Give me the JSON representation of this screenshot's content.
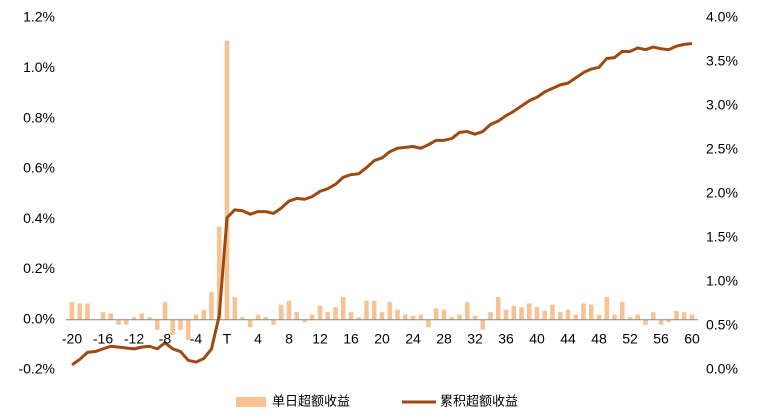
{
  "chart_data": {
    "type": "bar",
    "categories": [
      "-20",
      null,
      null,
      null,
      "-16",
      null,
      null,
      null,
      "-12",
      null,
      null,
      null,
      "-8",
      null,
      null,
      null,
      "-4",
      null,
      null,
      null,
      "T",
      null,
      null,
      null,
      "4",
      null,
      null,
      null,
      "8",
      null,
      null,
      null,
      "12",
      null,
      null,
      null,
      "16",
      null,
      null,
      null,
      "20",
      null,
      null,
      null,
      "24",
      null,
      null,
      null,
      "28",
      null,
      null,
      null,
      "32",
      null,
      null,
      null,
      "36",
      null,
      null,
      null,
      "40",
      null,
      null,
      null,
      "44",
      null,
      null,
      null,
      "48",
      null,
      null,
      null,
      "52",
      null,
      null,
      null,
      "56",
      null,
      null,
      null,
      "60"
    ],
    "series": [
      {
        "name": "单日超额收益",
        "color": "#f7c393",
        "type": "bar",
        "values": [
          0.07,
          0.065,
          0.065,
          0.0,
          0.03,
          0.025,
          -0.02,
          -0.02,
          0.01,
          0.025,
          0.01,
          -0.04,
          0.07,
          -0.06,
          -0.04,
          -0.08,
          0.02,
          0.04,
          0.11,
          0.37,
          1.11,
          0.09,
          0.01,
          -0.03,
          0.02,
          0.01,
          -0.02,
          0.06,
          0.075,
          0.03,
          -0.01,
          0.02,
          0.055,
          0.03,
          0.05,
          0.09,
          0.03,
          0.01,
          0.075,
          0.075,
          0.03,
          0.07,
          0.04,
          0.02,
          0.015,
          0.02,
          -0.03,
          0.045,
          0.04,
          0.01,
          0.02,
          0.07,
          0.015,
          -0.04,
          0.03,
          0.09,
          0.04,
          0.055,
          0.05,
          0.065,
          0.05,
          0.035,
          0.06,
          0.03,
          0.04,
          0.02,
          0.065,
          0.06,
          0.02,
          0.09,
          0.02,
          0.07,
          0.01,
          0.02,
          -0.02,
          0.03,
          -0.02,
          -0.01,
          0.035,
          0.03,
          0.02
        ]
      },
      {
        "name": "累积超额收益",
        "color": "#9c4a12",
        "type": "line",
        "axis": "y2",
        "values": [
          0.06,
          0.12,
          0.2,
          0.21,
          0.24,
          0.27,
          0.26,
          0.25,
          0.24,
          0.26,
          0.27,
          0.24,
          0.31,
          0.24,
          0.21,
          0.11,
          0.09,
          0.13,
          0.24,
          0.62,
          1.73,
          1.82,
          1.81,
          1.77,
          1.8,
          1.8,
          1.78,
          1.84,
          1.92,
          1.95,
          1.94,
          1.97,
          2.03,
          2.06,
          2.11,
          2.19,
          2.22,
          2.23,
          2.3,
          2.38,
          2.41,
          2.48,
          2.52,
          2.53,
          2.54,
          2.52,
          2.56,
          2.61,
          2.61,
          2.63,
          2.7,
          2.71,
          2.68,
          2.71,
          2.79,
          2.83,
          2.89,
          2.94,
          3.0,
          3.06,
          3.1,
          3.16,
          3.2,
          3.24,
          3.26,
          3.32,
          3.38,
          3.42,
          3.44,
          3.54,
          3.55,
          3.62,
          3.62,
          3.66,
          3.64,
          3.67,
          3.65,
          3.64,
          3.68,
          3.7,
          3.71
        ]
      }
    ],
    "ylim": [
      -0.2,
      1.2
    ],
    "yticks": [
      {
        "value": -0.2,
        "label": "-0.2%"
      },
      {
        "value": 0.0,
        "label": "0.0%"
      },
      {
        "value": 0.2,
        "label": "0.2%"
      },
      {
        "value": 0.4,
        "label": "0.4%"
      },
      {
        "value": 0.6,
        "label": "0.6%"
      },
      {
        "value": 0.8,
        "label": "0.8%"
      },
      {
        "value": 1.0,
        "label": "1.0%"
      },
      {
        "value": 1.2,
        "label": "1.2%"
      }
    ],
    "y2lim": [
      0.0,
      4.0
    ],
    "y2ticks": [
      {
        "value": 0.0,
        "label": "0.0%"
      },
      {
        "value": 0.5,
        "label": "0.5%"
      },
      {
        "value": 1.0,
        "label": "1.0%"
      },
      {
        "value": 1.5,
        "label": "1.5%"
      },
      {
        "value": 2.0,
        "label": "2.0%"
      },
      {
        "value": 2.5,
        "label": "2.5%"
      },
      {
        "value": 3.0,
        "label": "3.0%"
      },
      {
        "value": 3.5,
        "label": "3.5%"
      },
      {
        "value": 4.0,
        "label": "4.0%"
      }
    ],
    "grid": false,
    "legend": "bottom"
  }
}
